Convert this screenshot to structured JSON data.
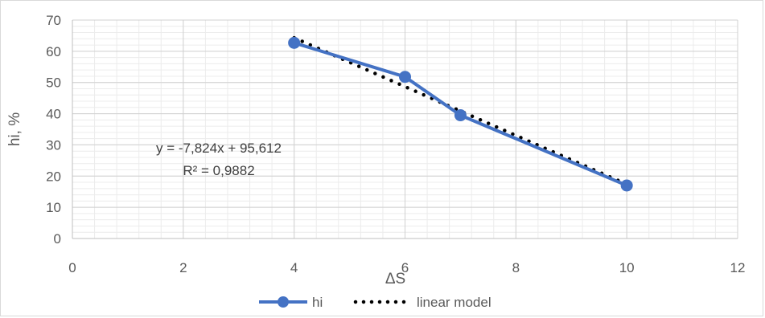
{
  "chart_data": {
    "type": "scatter",
    "xlabel": "ΔS",
    "ylabel": "hi, %",
    "xlim": [
      0,
      12
    ],
    "ylim": [
      0,
      70
    ],
    "x_ticks": [
      "0",
      "2",
      "4",
      "6",
      "8",
      "10",
      "12"
    ],
    "y_ticks": [
      "0",
      "10",
      "20",
      "30",
      "40",
      "50",
      "60",
      "70"
    ],
    "x_tick_values": [
      0,
      2,
      4,
      6,
      8,
      10,
      12
    ],
    "y_tick_values": [
      0,
      10,
      20,
      30,
      40,
      50,
      60,
      70
    ],
    "grid": true,
    "legend_position": "bottom",
    "series": [
      {
        "name": "hi",
        "style": "line-markers",
        "color": "#4472c4",
        "x": [
          4,
          6,
          7,
          10
        ],
        "y": [
          62.7,
          51.8,
          39.5,
          17.0
        ]
      }
    ],
    "trendline": {
      "name": "linear model",
      "style": "dotted",
      "color": "#000000",
      "slope": -7.824,
      "intercept": 95.612,
      "x_range": [
        4,
        10
      ]
    },
    "annotations": {
      "equation": "y = -7,824x + 95,612",
      "r_squared": "R² = 0,9882"
    }
  }
}
